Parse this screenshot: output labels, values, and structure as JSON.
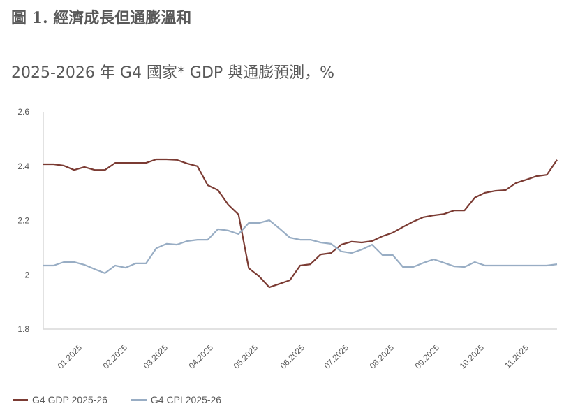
{
  "title": "圖 1. 經濟成長但通膨溫和",
  "subtitle": "2025-2026 年 G4 國家* GDP 與通膨預測，%",
  "chart_data": {
    "type": "line",
    "title": "2025-2026 年 G4 國家* GDP 與通膨預測，%",
    "ylim": [
      1.8,
      2.6
    ],
    "yticks": [
      "1.8",
      "2",
      "2.2",
      "2.4",
      "2.6"
    ],
    "ytick_values": [
      1.8,
      2.0,
      2.2,
      2.4,
      2.6
    ],
    "xtick_labels": [
      "01.2025",
      "02.2025",
      "03.2025",
      "04.2025",
      "05.2025",
      "06.2025",
      "07.2025",
      "08.2025",
      "09.2025",
      "10.2025",
      "11.2025"
    ],
    "grid": false,
    "legend_position": "bottom-left",
    "series": [
      {
        "name": "G4 GDP 2025-26",
        "color": "#7b3b33",
        "values": [
          2.407,
          2.407,
          2.402,
          2.386,
          2.397,
          2.386,
          2.386,
          2.412,
          2.412,
          2.412,
          2.412,
          2.425,
          2.425,
          2.423,
          2.41,
          2.4,
          2.33,
          2.312,
          2.258,
          2.222,
          2.024,
          1.995,
          1.954,
          1.967,
          1.98,
          2.034,
          2.039,
          2.075,
          2.08,
          2.111,
          2.122,
          2.119,
          2.124,
          2.142,
          2.155,
          2.176,
          2.196,
          2.212,
          2.219,
          2.224,
          2.237,
          2.237,
          2.284,
          2.302,
          2.309,
          2.312,
          2.338,
          2.35,
          2.363,
          2.368,
          2.423
        ]
      },
      {
        "name": "G4 CPI 2025-26",
        "color": "#98adc4",
        "values": [
          2.034,
          2.034,
          2.047,
          2.047,
          2.037,
          2.021,
          2.006,
          2.034,
          2.026,
          2.042,
          2.042,
          2.098,
          2.114,
          2.111,
          2.124,
          2.129,
          2.129,
          2.168,
          2.163,
          2.15,
          2.191,
          2.191,
          2.201,
          2.17,
          2.137,
          2.129,
          2.129,
          2.119,
          2.114,
          2.086,
          2.08,
          2.093,
          2.111,
          2.073,
          2.073,
          2.029,
          2.029,
          2.044,
          2.057,
          2.044,
          2.031,
          2.029,
          2.047,
          2.034,
          2.034,
          2.034,
          2.034,
          2.034,
          2.034,
          2.034,
          2.039
        ]
      }
    ]
  }
}
